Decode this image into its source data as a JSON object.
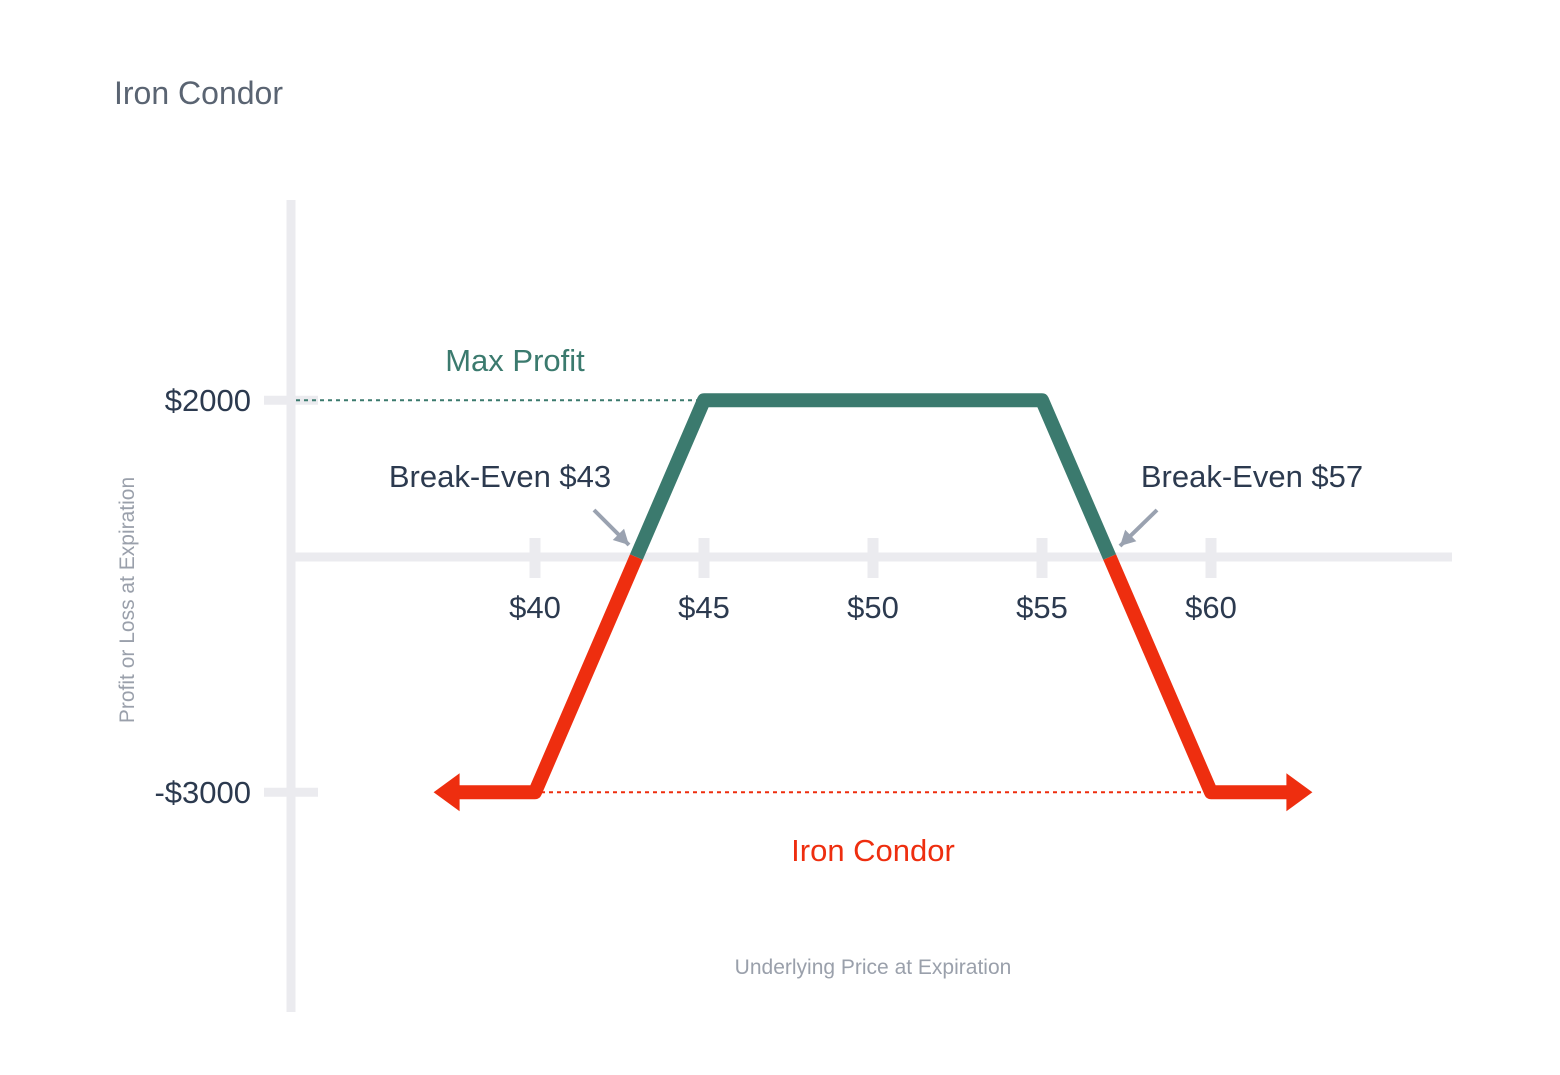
{
  "chart_data": {
    "type": "line",
    "title": "Iron Condor",
    "xlabel": "Underlying Price at Expiration",
    "ylabel": "Profit or Loss at Expiration",
    "x_ticks": [
      {
        "value": 40,
        "label": "$40"
      },
      {
        "value": 45,
        "label": "$45"
      },
      {
        "value": 50,
        "label": "$50"
      },
      {
        "value": 55,
        "label": "$55"
      },
      {
        "value": 60,
        "label": "$60"
      }
    ],
    "y_ticks": [
      {
        "value": 2000,
        "label": "$2000"
      },
      {
        "value": -3000,
        "label": "-$3000"
      }
    ],
    "series": [
      {
        "name": "Iron Condor",
        "points": [
          [
            37,
            -3000
          ],
          [
            40,
            -3000
          ],
          [
            43,
            0
          ],
          [
            45,
            2000
          ],
          [
            55,
            2000
          ],
          [
            57,
            0
          ],
          [
            60,
            -3000
          ],
          [
            63,
            -3000
          ]
        ]
      }
    ],
    "annotations": {
      "max_profit": {
        "label": "Max Profit",
        "value": 2000
      },
      "break_even_low": {
        "label": "Break-Even $43",
        "x": 43
      },
      "break_even_high": {
        "label": "Break-Even $57",
        "x": 57
      },
      "max_loss": {
        "value": -3000
      }
    },
    "colors": {
      "profit": "#3b7a6e",
      "loss": "#ee2e0f",
      "axis": "#ebebef",
      "text_dark": "#2c3a4f",
      "text_muted": "#9aa0ab",
      "title": "#5a6472",
      "arrow": "#9aa2b0"
    }
  }
}
